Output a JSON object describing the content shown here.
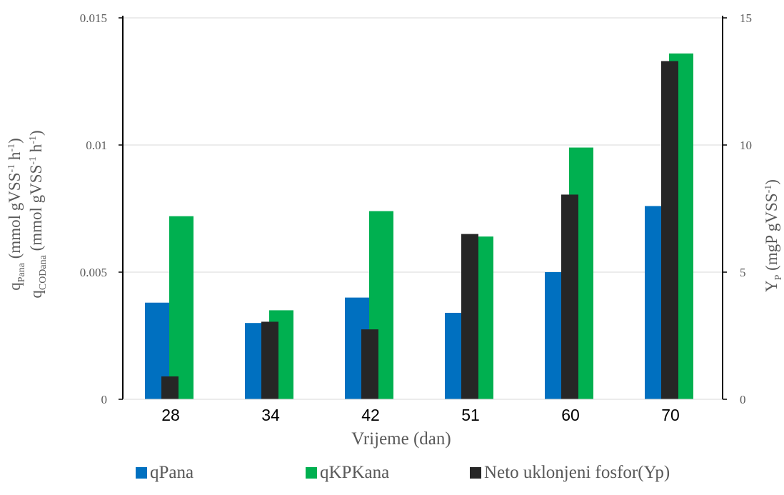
{
  "chart_data": {
    "type": "bar",
    "categories": [
      "28",
      "34",
      "42",
      "51",
      "60",
      "70"
    ],
    "xlabel": "Vrijeme (dan)",
    "ylabel_left": {
      "line1": {
        "base": "q",
        "sub": "Pana",
        "rest": " (mmol gVSS",
        "sup1": "-1",
        "mid": " h",
        "sup2": "-1",
        "end": ")"
      },
      "line2": {
        "base": "q",
        "sub": "CODana",
        "rest": " (mmol gVSS",
        "sup1": "-1",
        "mid": " h",
        "sup2": "-1",
        "end": ")"
      }
    },
    "ylabel_right": {
      "base": "Y",
      "sub": "P",
      "rest": " (mgP gVSS",
      "sup": "-1",
      "end": ")"
    },
    "ylim_left": [
      0,
      0.015
    ],
    "yticks_left": [
      "0",
      "0.005",
      "0.01",
      "0.015"
    ],
    "ylim_right": [
      0,
      15
    ],
    "yticks_right": [
      "0",
      "5",
      "10",
      "15"
    ],
    "grid": true,
    "legend_position": "bottom",
    "series": [
      {
        "name": "qPana",
        "axis": "left",
        "color": "#0070C0",
        "values": [
          0.0038,
          0.003,
          0.004,
          0.0034,
          0.005,
          0.0076
        ]
      },
      {
        "name": "qKPKana",
        "axis": "left",
        "color": "#00B050",
        "values": [
          0.0072,
          0.0035,
          0.0074,
          0.0064,
          0.0099,
          0.0136
        ]
      },
      {
        "name": "Neto uklonjeni fosfor(Yp)",
        "axis": "right",
        "color": "#262626",
        "values": [
          0.9,
          3.05,
          2.75,
          6.5,
          8.05,
          13.3
        ]
      }
    ]
  }
}
